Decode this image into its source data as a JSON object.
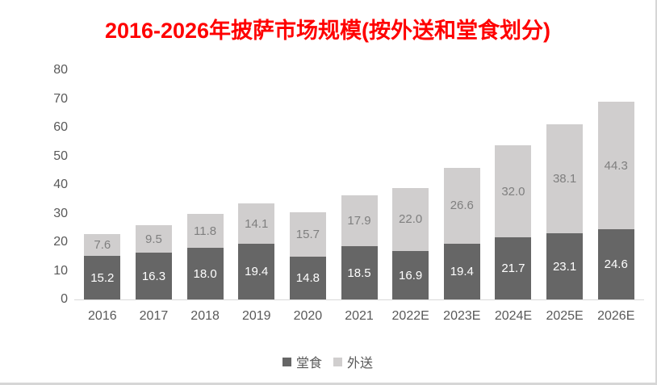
{
  "title": {
    "text": "2016-2026年披萨市场规模(按外送和堂食划分)",
    "color": "#ff0000"
  },
  "chart_data": {
    "type": "bar",
    "stacked": true,
    "title": "2016-2026年披萨市场规模(按外送和堂食划分)",
    "categories": [
      "2016",
      "2017",
      "2018",
      "2019",
      "2020",
      "2021",
      "2022E",
      "2023E",
      "2024E",
      "2025E",
      "2026E"
    ],
    "series": [
      {
        "name": "堂食",
        "color": "#666666",
        "label_color": "#ffffff",
        "values": [
          15.2,
          16.3,
          18.0,
          19.4,
          14.8,
          18.5,
          16.9,
          19.4,
          21.7,
          23.1,
          24.6
        ]
      },
      {
        "name": "外送",
        "color": "#d0cece",
        "label_color": "#7f7f7f",
        "values": [
          7.6,
          9.5,
          11.8,
          14.1,
          15.7,
          17.9,
          22.0,
          26.6,
          32.0,
          38.1,
          44.3
        ]
      }
    ],
    "y_ticks": [
      0,
      10,
      20,
      30,
      40,
      50,
      60,
      70,
      80
    ],
    "ylim": [
      0,
      80
    ],
    "xlabel": "",
    "ylabel": "",
    "grid": false,
    "legend_position": "bottom",
    "data_labels": true,
    "label_decimals": 1
  },
  "axis": {
    "tick_color": "#595959",
    "line_color": "#d9d9d9"
  }
}
